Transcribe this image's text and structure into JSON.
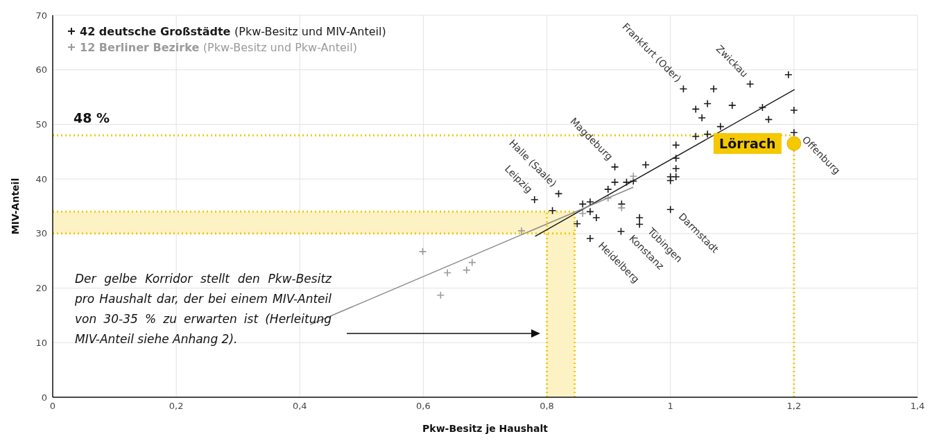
{
  "chart_data": {
    "type": "scatter",
    "xlabel": "Pkw-Besitz je Haushalt",
    "ylabel": "MIV-Anteil",
    "xlim": [
      0,
      1.4
    ],
    "xticks": [
      0,
      {
        "value": 0.2,
        "label": "0,2"
      },
      {
        "value": 0.4,
        "label": "0,4"
      },
      {
        "value": 0.6,
        "label": "0,6"
      },
      {
        "value": 0.8,
        "label": "0,8"
      },
      1,
      {
        "value": 1.2,
        "label": "1,2"
      },
      {
        "value": 1.4,
        "label": "1,4"
      }
    ],
    "ylim": [
      0,
      70
    ],
    "yticks": [
      0,
      10,
      20,
      30,
      40,
      50,
      60,
      70
    ],
    "grid": true,
    "legend": "top left",
    "marker": "cross",
    "series": [
      {
        "type": "scatter",
        "name": "42 deutsche Großstädte (Pkw-Besitz und MIV-Anteil)",
        "color": "#1a1a1a",
        "x": [
          0.78,
          0.819,
          0.809,
          0.849,
          0.87,
          0.858,
          0.87,
          0.87,
          0.88,
          0.899,
          0.91,
          0.91,
          0.929,
          0.94,
          0.96,
          0.921,
          0.92,
          0.95,
          0.95,
          1.021,
          1.07,
          1.129,
          1.191,
          1.06,
          1.041,
          1.1,
          1.051,
          1.149,
          1.159,
          1.2,
          1.081,
          1.041,
          1.06,
          1.2,
          1.009,
          1.009,
          1.009,
          1.0,
          1.009,
          1.0,
          1.0
        ],
        "values": [
          36.2,
          37.3,
          34.2,
          31.8,
          29.1,
          35.4,
          35.8,
          34.0,
          32.9,
          38.1,
          42.2,
          39.4,
          39.4,
          39.6,
          42.6,
          35.4,
          30.4,
          32.9,
          31.7,
          56.5,
          56.5,
          57.4,
          59.1,
          53.8,
          52.8,
          53.5,
          51.2,
          53.1,
          50.9,
          52.6,
          49.6,
          47.8,
          48.2,
          48.5,
          46.2,
          43.8,
          41.9,
          40.4,
          40.4,
          39.7,
          34.4
        ]
      },
      {
        "type": "scatter",
        "name": "12 Berliner Bezirke (Pkw-Besitz und Pkw-Anteil)",
        "color": "#9a9a9a",
        "x": [
          0.599,
          0.639,
          0.67,
          0.679,
          0.628,
          0.759,
          0.858,
          0.899,
          0.921,
          0.94
        ],
        "values": [
          26.7,
          22.8,
          23.3,
          24.7,
          18.7,
          30.5,
          33.7,
          36.5,
          34.7,
          40.5
        ]
      },
      {
        "type": "line",
        "color": "#1a1a1a",
        "x": [
          0.781,
          1.201
        ],
        "values": [
          29.5,
          56.4
        ],
        "line_style": "solid",
        "marker": "none"
      },
      {
        "type": "line",
        "color": "#8a8a8a",
        "x": [
          0.417,
          0.94
        ],
        "values": [
          13.3,
          38.5
        ],
        "line_style": "solid",
        "marker": "none"
      },
      {
        "type": "scatter",
        "name": "Lörrach",
        "color": "#f5c800",
        "marker": "circle",
        "x": [
          1.2
        ],
        "values": [
          46.5
        ]
      }
    ],
    "ref_lines": [
      {
        "axis": "y",
        "value": 48,
        "label": "48 %",
        "color": "#f5c800",
        "line_style": "dotted"
      },
      {
        "axis": "x",
        "value": 1.2,
        "color": "#f5c800",
        "line_style": "dotted"
      },
      {
        "axis": "y",
        "value": 30,
        "color": "#f5c800",
        "line_style": "dotted"
      },
      {
        "axis": "y",
        "value": 34,
        "color": "#f5c800",
        "line_style": "dotted"
      },
      {
        "axis": "x",
        "value": 0.8,
        "color": "#f5c800",
        "line_style": "dotted"
      },
      {
        "axis": "x",
        "value": 0.845,
        "color": "#f5c800",
        "line_style": "dotted"
      }
    ],
    "bands": [
      {
        "axis": "y",
        "from": 30,
        "to": 34,
        "color": "#fdf2c4"
      },
      {
        "axis": "x",
        "from": 0.8,
        "to": 0.845,
        "color": "#fdf2c4"
      }
    ],
    "annotations": [
      {
        "text": "Frankfurt (Oder)",
        "x": 1.021,
        "y": 56.5
      },
      {
        "text": "Zwickau",
        "x": 1.129,
        "y": 57.4
      },
      {
        "text": "Magdeburg",
        "x": 0.91,
        "y": 42.2
      },
      {
        "text": "Halle (Saale)",
        "x": 0.819,
        "y": 37.3
      },
      {
        "text": "Leipzig",
        "x": 0.78,
        "y": 36.2
      },
      {
        "text": "Offenburg",
        "x": 1.2,
        "y": 48.5
      },
      {
        "text": "Darmstadt",
        "x": 1.0,
        "y": 34.4
      },
      {
        "text": "Tübingen",
        "x": 0.95,
        "y": 31.7
      },
      {
        "text": "Konstanz",
        "x": 0.92,
        "y": 30.4
      },
      {
        "text": "Heidelberg",
        "x": 0.87,
        "y": 29.1
      },
      "Der gelbe Korridor stellt den Pkw-Besitz pro Haushalt dar, der bei einem MIV-Anteil von 30-35 % zu erwarten ist (Herleitung MIV-Anteil siehe Anhang 2)."
    ]
  }
}
